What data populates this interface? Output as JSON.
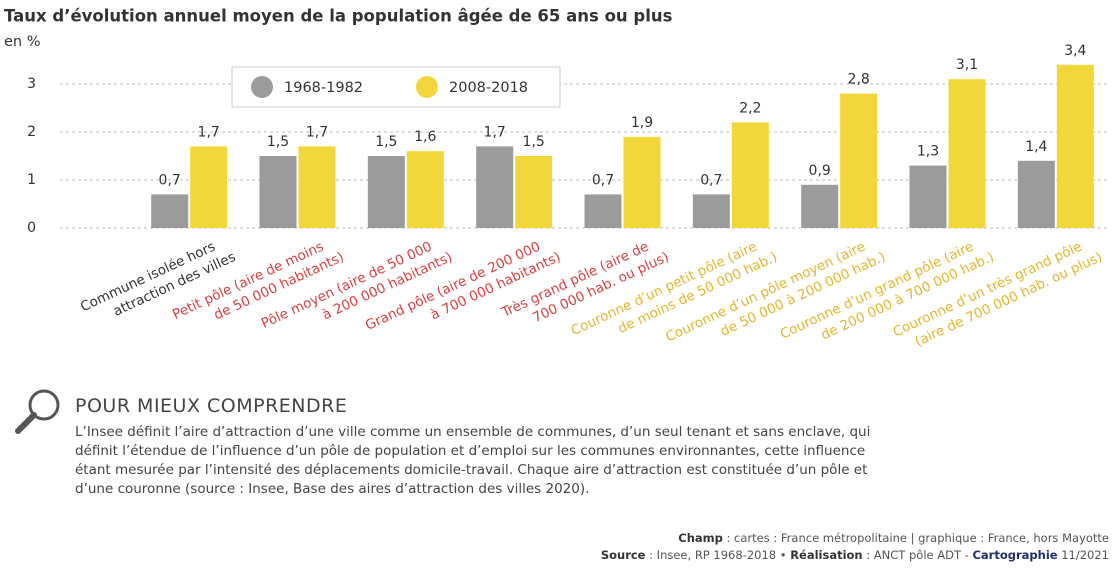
{
  "chart_data": {
    "type": "bar",
    "title": "Taux d’évolution annuel moyen de la population âgée de 65 ans ou plus",
    "y_label": "en %",
    "categories": [
      [
        "Commune isolée hors",
        "attraction des villes"
      ],
      [
        "Petit pôle (aire de moins",
        "de 50 000 habitants)"
      ],
      [
        "Pôle moyen (aire de 50 000",
        "à 200 000 habitants)"
      ],
      [
        "Grand pôle (aire de 200 000",
        "à 700 000 habitants)"
      ],
      [
        "Très grand pôle (aire de",
        "700 000 hab. ou plus)"
      ],
      [
        "Couronne d’un petit pôle (aire",
        "de moins de 50 000 hab.)"
      ],
      [
        "Couronne d’un pôle moyen (aire",
        "de 50 000 à 200 000 hab.)"
      ],
      [
        "Couronne d’un grand pôle (aire",
        "de 200 000 à 700 000 hab.)"
      ],
      [
        "Couronne d’un très grand pôle",
        "(aire de 700 000 hab. ou plus)"
      ]
    ],
    "category_colors": [
      "#333333",
      "#d9413f",
      "#d9413f",
      "#d9413f",
      "#d9413f",
      "#e6b52e",
      "#e6b52e",
      "#e6b52e",
      "#e6b52e"
    ],
    "series": [
      {
        "name": "1968-1982",
        "color": "#9b9b9b",
        "values": [
          0.7,
          1.5,
          1.5,
          1.7,
          0.7,
          0.7,
          0.9,
          1.3,
          1.4
        ],
        "value_labels": [
          "0,7",
          "1,5",
          "1,5",
          "1,7",
          "0,7",
          "0,7",
          "0,9",
          "1,3",
          "1,4"
        ]
      },
      {
        "name": "2008-2018",
        "color": "#f2d73b",
        "values": [
          1.7,
          1.7,
          1.6,
          1.5,
          1.9,
          2.2,
          2.8,
          3.1,
          3.4
        ],
        "value_labels": [
          "1,7",
          "1,7",
          "1,6",
          "1,5",
          "1,9",
          "2,2",
          "2,8",
          "3,1",
          "3,4"
        ]
      }
    ],
    "ylim": [
      0,
      3.5
    ],
    "yticks": [
      0,
      1,
      2,
      3
    ],
    "grid": true,
    "legend": "top-left"
  },
  "explainer": {
    "title": "POUR MIEUX COMPRENDRE",
    "lines": [
      "L’Insee définit l’aire d’attraction d’une ville comme un ensemble de communes, d’un seul tenant et sans enclave, qui",
      "définit l’étendue de l’influence d’un pôle de population et d’emploi sur les communes environnantes, cette influence",
      "étant mesurée par l’intensité des déplacements domicile-travail. Chaque aire d’attraction est constituée d’un pôle et",
      "d’une couronne (source : Insee, Base des aires d’attraction des villes 2020)."
    ]
  },
  "credits": {
    "scope": {
      "label": "Champ",
      "text": " : cartes : France métropolitaine | graphique : France, hors Mayotte"
    },
    "source": {
      "label": "Source",
      "text": " : Insee, RP 1968-2018 • "
    },
    "realisation": {
      "label": "Réalisation",
      "text": " : ANCT pôle ADT - "
    },
    "carto": {
      "label": "Cartographie",
      "text": " 11/2021"
    }
  }
}
